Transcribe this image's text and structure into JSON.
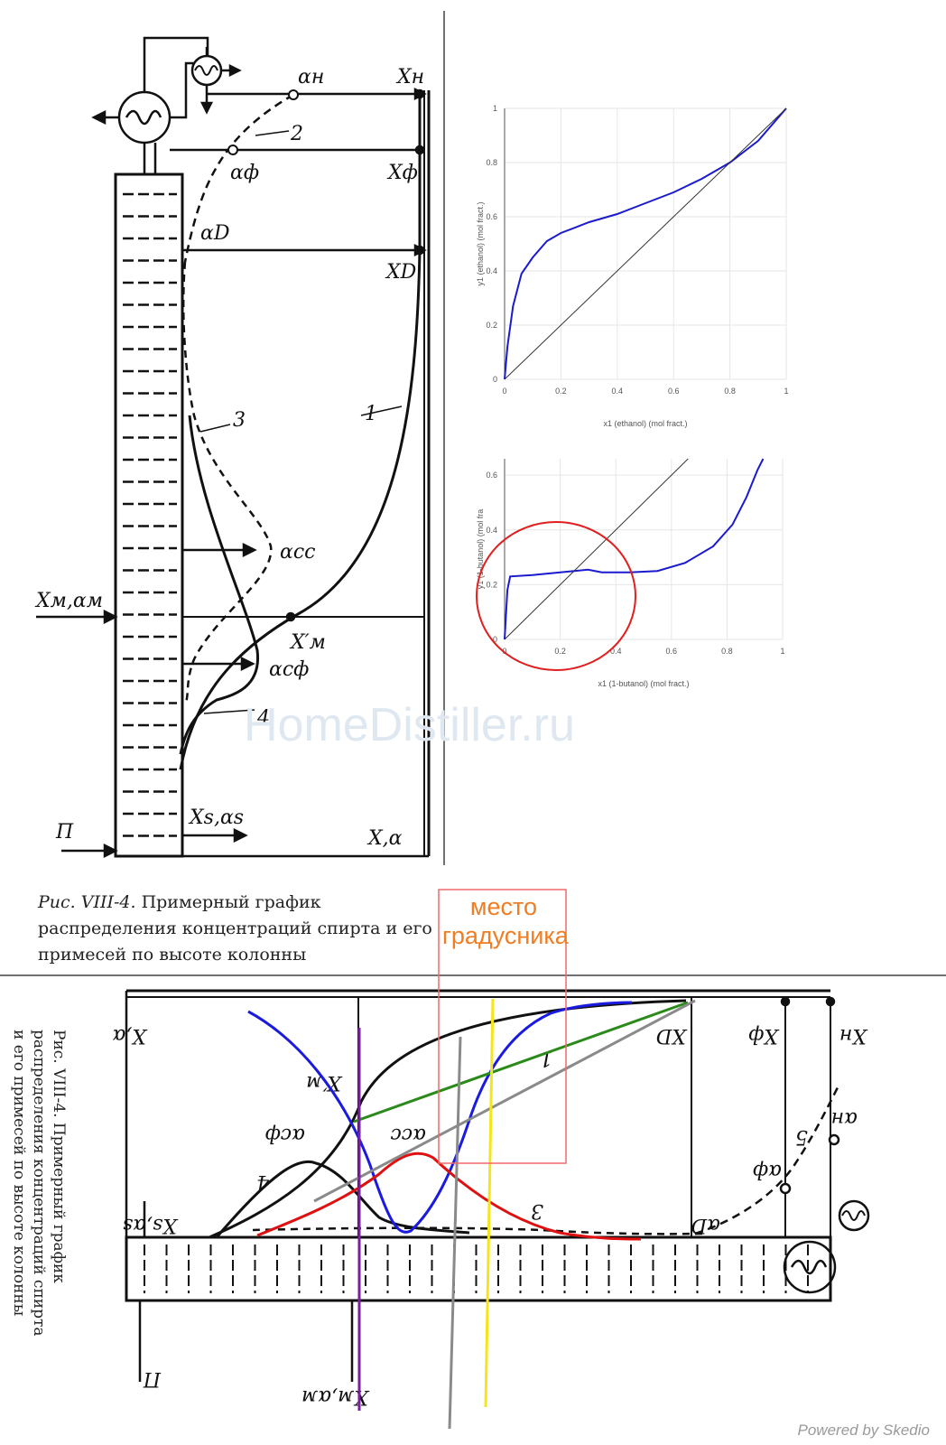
{
  "figure": {
    "caption_lead": "Рис. VIII-4.",
    "caption_text": "Примерный график распределения концентраций спирта и его примесей по высоте колонны",
    "labels": {
      "alpha_n": "αн",
      "X_n": "Xн",
      "alpha_f": "αф",
      "X_f": "Xф",
      "alpha_D": "αD",
      "X_D": "XD",
      "curve2": "2",
      "curve1": "1",
      "curve3": "3",
      "curve4": "4",
      "alpha_cc": "αсс",
      "alpha_cf": "αсф",
      "X_m_prime": "X′м",
      "feed": "Xм,αм",
      "bottom_out": "Xs,αs",
      "axis": "X,α",
      "P": "П"
    }
  },
  "watermark": "HomeDistiller.ru",
  "thermometer_note": "место градусника",
  "footer": "Powered by Skedio",
  "chart_data": [
    {
      "type": "line",
      "title": "",
      "xlabel": "x1 (ethanol) (mol fract.)",
      "ylabel": "y1 (ethanol) (mol fract.)",
      "xlim": [
        0,
        1
      ],
      "ylim": [
        0,
        1
      ],
      "x_ticks": [
        "0",
        "0.2",
        "0.4",
        "0.6",
        "0.8",
        "1"
      ],
      "y_ticks": [
        "0",
        "0.2",
        "0.4",
        "0.6",
        "0.8",
        "1"
      ],
      "series": [
        {
          "name": "equilibrium",
          "color": "#1a1ad0",
          "x": [
            0,
            0.01,
            0.03,
            0.06,
            0.1,
            0.15,
            0.2,
            0.3,
            0.4,
            0.5,
            0.6,
            0.7,
            0.8,
            0.85,
            0.9,
            1.0
          ],
          "y": [
            0,
            0.12,
            0.27,
            0.39,
            0.45,
            0.51,
            0.54,
            0.58,
            0.61,
            0.65,
            0.69,
            0.74,
            0.8,
            0.84,
            0.88,
            1.0
          ]
        },
        {
          "name": "diagonal",
          "color": "#333333",
          "x": [
            0,
            1
          ],
          "y": [
            0,
            1
          ]
        }
      ]
    },
    {
      "type": "line",
      "title": "",
      "xlabel": "x1 (1-butanol) (mol fract.)",
      "ylabel": "y1 (1-butanol) (mol fra",
      "xlim": [
        0,
        1
      ],
      "ylim": [
        0,
        0.66
      ],
      "x_ticks": [
        "0",
        "0.2",
        "0.4",
        "0.6",
        "0.8",
        "1"
      ],
      "y_ticks": [
        "0",
        "0.2",
        "0.4",
        "0.6"
      ],
      "series": [
        {
          "name": "equilibrium",
          "color": "#1a1ad0",
          "x": [
            0,
            0.01,
            0.02,
            0.1,
            0.2,
            0.3,
            0.35,
            0.45,
            0.55,
            0.65,
            0.75,
            0.82,
            0.87,
            0.91,
            0.93
          ],
          "y": [
            0,
            0.18,
            0.23,
            0.235,
            0.245,
            0.255,
            0.245,
            0.245,
            0.25,
            0.28,
            0.34,
            0.42,
            0.52,
            0.62,
            0.66
          ]
        },
        {
          "name": "diagonal",
          "color": "#333333",
          "x": [
            0,
            0.66
          ],
          "y": [
            0,
            0.66
          ]
        }
      ]
    }
  ]
}
